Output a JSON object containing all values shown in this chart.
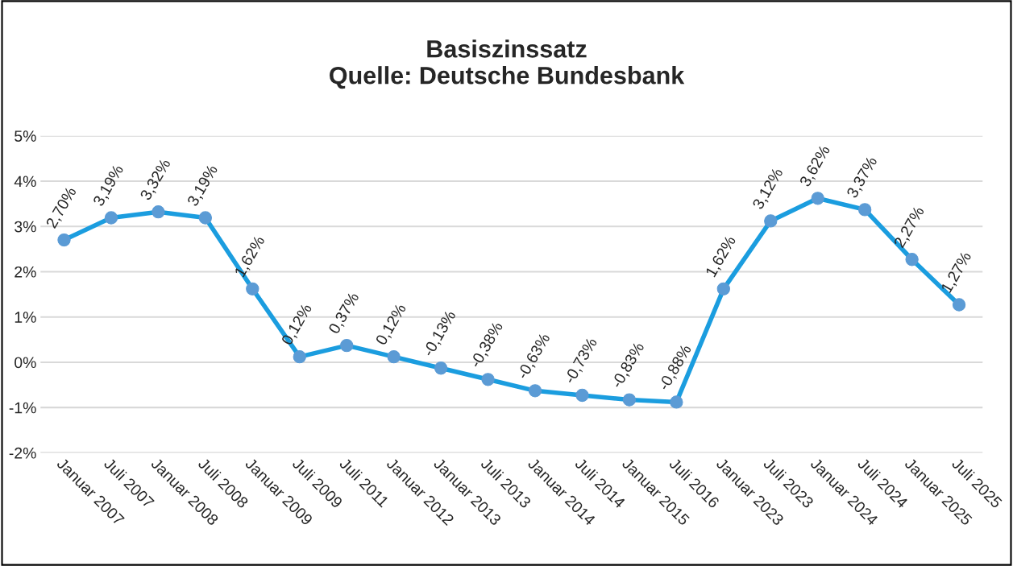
{
  "chart_data": {
    "type": "line",
    "title": "Basiszinssatz\nQuelle: Deutsche Bundesbank",
    "categories": [
      "Januar 2007",
      "Juli 2007",
      "Januar 2008",
      "Juli 2008",
      "Januar 2009",
      "Juli 2009",
      "Juli 2011",
      "Januar 2012",
      "Januar 2013",
      "Juli 2013",
      "Januar 2014",
      "Juli 2014",
      "Januar 2015",
      "Juli 2016",
      "Januar 2023",
      "Juli 2023",
      "Januar 2024",
      "Juli 2024",
      "Januar 2025",
      "Juli 2025"
    ],
    "series": [
      {
        "color": "#1b9ddf",
        "values": [
          2.7,
          3.19,
          3.32,
          3.19,
          1.62,
          0.12,
          0.37,
          0.12,
          -0.13,
          -0.38,
          -0.63,
          -0.73,
          -0.83,
          -0.88,
          1.62,
          3.12,
          3.62,
          3.37,
          2.27,
          1.27
        ],
        "value_labels": [
          "2,70%",
          "3,19%",
          "3,32%",
          "3,19%",
          "1,62%",
          "0,12%",
          "0,37%",
          "0,12%",
          "-0,13%",
          "-0,38%",
          "-0,63%",
          "-0,73%",
          "-0,83%",
          "-0,88%",
          "1,62%",
          "3,12%",
          "3,62%",
          "3,37%",
          "2,27%",
          "1,27%"
        ]
      }
    ],
    "ylim": [
      -2,
      5
    ],
    "yticks": [
      {
        "value": -2,
        "label": "-2%"
      },
      {
        "value": -1,
        "label": "-1%"
      },
      {
        "value": 0,
        "label": "0%"
      },
      {
        "value": 1,
        "label": "1%"
      },
      {
        "value": 2,
        "label": "2%"
      },
      {
        "value": 3,
        "label": "3%"
      },
      {
        "value": 4,
        "label": "4%"
      },
      {
        "value": 5,
        "label": "5%"
      }
    ],
    "grid": "y",
    "marker": "circle",
    "line_style": "solid",
    "legend": false
  }
}
